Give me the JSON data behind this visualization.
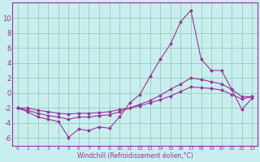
{
  "xlabel": "Windchill (Refroidissement éolien,°C)",
  "xlim": [
    -0.5,
    23.5
  ],
  "ylim": [
    -7,
    12
  ],
  "yticks": [
    -6,
    -4,
    -2,
    0,
    2,
    4,
    6,
    8,
    10
  ],
  "xticks": [
    0,
    1,
    2,
    3,
    4,
    5,
    6,
    7,
    8,
    9,
    10,
    11,
    12,
    13,
    14,
    15,
    16,
    17,
    18,
    19,
    20,
    21,
    22,
    23
  ],
  "bg_color": "#c8eef0",
  "grid_color": "#99ccbb",
  "line_color": "#993399",
  "spine_color": "#993399",
  "line1_x": [
    0,
    1,
    2,
    3,
    4,
    5,
    6,
    7,
    8,
    9,
    10,
    11,
    12,
    13,
    14,
    15,
    16,
    17,
    18,
    19,
    20,
    21,
    22,
    23
  ],
  "line1_y": [
    -2.0,
    -2.5,
    -3.2,
    -3.5,
    -3.8,
    -5.9,
    -4.8,
    -5.0,
    -4.5,
    -4.7,
    -3.2,
    -1.3,
    -0.2,
    2.2,
    4.5,
    6.5,
    9.5,
    11.0,
    4.5,
    3.0,
    3.0,
    0.5,
    -2.2,
    -0.7
  ],
  "line2_x": [
    0,
    1,
    2,
    3,
    4,
    5,
    6,
    7,
    8,
    9,
    10,
    11,
    12,
    13,
    14,
    15,
    16,
    17,
    18,
    19,
    20,
    21,
    22,
    23
  ],
  "line2_y": [
    -2.0,
    -2.3,
    -2.7,
    -3.0,
    -3.2,
    -3.5,
    -3.2,
    -3.2,
    -3.0,
    -2.9,
    -2.5,
    -2.0,
    -1.5,
    -1.0,
    -0.3,
    0.5,
    1.2,
    2.0,
    1.8,
    1.5,
    1.2,
    0.5,
    -0.5,
    -0.5
  ],
  "line3_x": [
    0,
    1,
    2,
    3,
    4,
    5,
    6,
    7,
    8,
    9,
    10,
    11,
    12,
    13,
    14,
    15,
    16,
    17,
    18,
    19,
    20,
    21,
    22,
    23
  ],
  "line3_y": [
    -2.0,
    -2.0,
    -2.3,
    -2.5,
    -2.7,
    -2.8,
    -2.7,
    -2.7,
    -2.6,
    -2.5,
    -2.2,
    -2.0,
    -1.7,
    -1.3,
    -0.9,
    -0.4,
    0.2,
    0.8,
    0.7,
    0.6,
    0.4,
    -0.2,
    -0.8,
    -0.5
  ],
  "xlabel_fontsize": 5.5,
  "ytick_fontsize": 6.0,
  "xtick_fontsize": 4.5,
  "marker_size": 1.5,
  "line_width": 0.8
}
